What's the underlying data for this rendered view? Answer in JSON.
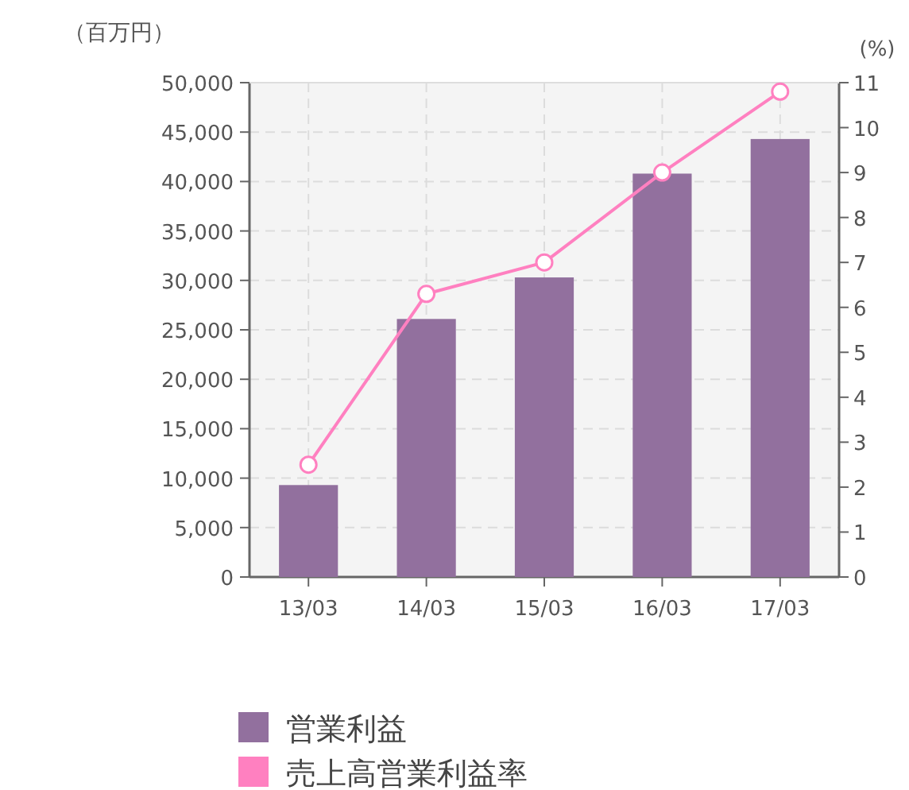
{
  "chart_data": {
    "type": "bar",
    "ylabel": "（百万円）",
    "y2label": "(%)",
    "categories": [
      "13/03",
      "14/03",
      "15/03",
      "16/03",
      "17/03"
    ],
    "series": [
      {
        "name": "営業利益",
        "color": "#92709e",
        "values": [
          9300,
          26100,
          30300,
          40800,
          44300
        ]
      },
      {
        "name": "売上高営業利益率",
        "type": "line",
        "axis": "y2",
        "color": "#ff80c0",
        "marker": "circle",
        "values": [
          2.5,
          6.3,
          7.0,
          9.0,
          10.8
        ]
      }
    ],
    "ylim": [
      0,
      50000
    ],
    "yticks": [
      0,
      {
        "value": 5000,
        "label": "5,000"
      },
      {
        "value": 10000,
        "label": "10,000"
      },
      {
        "value": 15000,
        "label": "15,000"
      },
      {
        "value": 20000,
        "label": "20,000"
      },
      {
        "value": 25000,
        "label": "25,000"
      },
      {
        "value": 30000,
        "label": "30,000"
      },
      {
        "value": 35000,
        "label": "35,000"
      },
      {
        "value": 40000,
        "label": "40,000"
      },
      {
        "value": 45000,
        "label": "45,000"
      },
      {
        "value": 50000,
        "label": "50,000"
      }
    ],
    "y2lim": [
      0,
      11
    ],
    "y2ticks": [
      0,
      1,
      2,
      3,
      4,
      5,
      6,
      7,
      8,
      9,
      10,
      11
    ],
    "grid": true,
    "legend": "bottom"
  }
}
